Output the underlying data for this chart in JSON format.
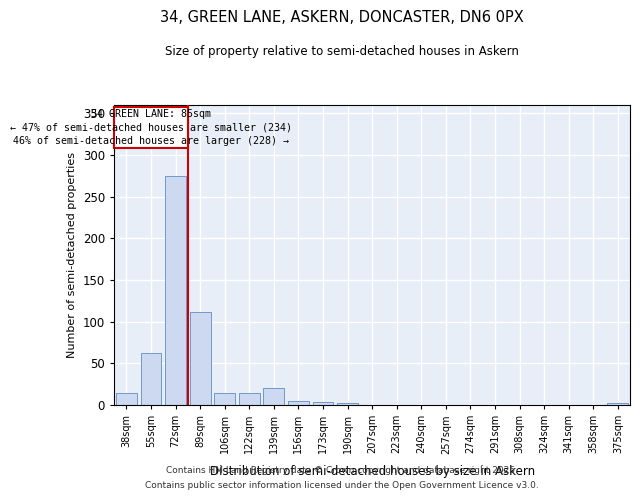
{
  "title1": "34, GREEN LANE, ASKERN, DONCASTER, DN6 0PX",
  "title2": "Size of property relative to semi-detached houses in Askern",
  "xlabel": "Distribution of semi-detached houses by size in Askern",
  "ylabel": "Number of semi-detached properties",
  "categories": [
    "38sqm",
    "55sqm",
    "72sqm",
    "89sqm",
    "106sqm",
    "122sqm",
    "139sqm",
    "156sqm",
    "173sqm",
    "190sqm",
    "207sqm",
    "223sqm",
    "240sqm",
    "257sqm",
    "274sqm",
    "291sqm",
    "308sqm",
    "324sqm",
    "341sqm",
    "358sqm",
    "375sqm"
  ],
  "values": [
    15,
    62,
    275,
    112,
    15,
    15,
    20,
    5,
    4,
    2,
    0,
    0,
    0,
    0,
    0,
    0,
    0,
    0,
    0,
    0,
    2
  ],
  "bar_color": "#ccd9f0",
  "bar_edge_color": "#7099c8",
  "vline_color": "#cc0000",
  "annotation_text": "34 GREEN LANE: 85sqm\n← 47% of semi-detached houses are smaller (234)\n46% of semi-detached houses are larger (228) →",
  "annotation_box_color": "#cc0000",
  "ylim": [
    0,
    360
  ],
  "yticks": [
    0,
    50,
    100,
    150,
    200,
    250,
    300,
    350
  ],
  "bg_color": "#e8eef8",
  "footer1": "Contains HM Land Registry data © Crown copyright and database right 2025.",
  "footer2": "Contains public sector information licensed under the Open Government Licence v3.0."
}
